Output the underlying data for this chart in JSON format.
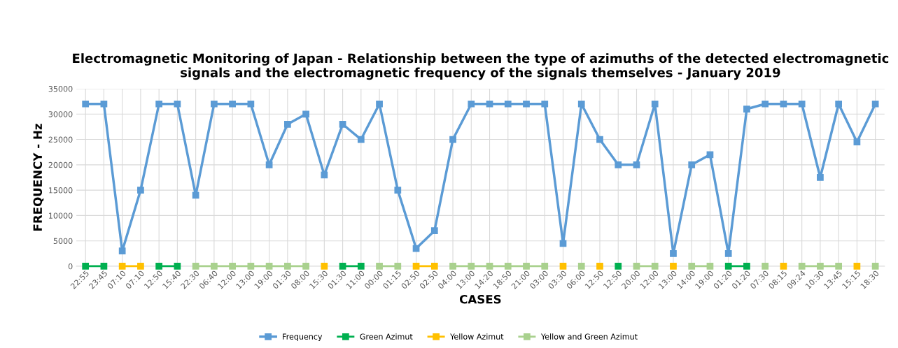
{
  "chart_data": {
    "type": "line",
    "title": "Electromagnetic Monitoring of Japan - Relationship between the type of azimuths of the detected electromagnetic signals and the electromagnetic frequency of the signals themselves - January 2019",
    "xlabel": "CASES",
    "ylabel": "FREQUENCY - Hz",
    "categories": [
      "22:55",
      "23:45",
      "07:10",
      "07:10",
      "12:50",
      "15:40",
      "22:30",
      "06:40",
      "12:00",
      "13:00",
      "19:00",
      "01:30",
      "08:00",
      "15:30",
      "01:30",
      "11:00",
      "00:00",
      "01:15",
      "02:50",
      "02:50",
      "04:00",
      "13:00",
      "14:20",
      "18:50",
      "21:00",
      "03:00",
      "03:30",
      "06:00",
      "12:50",
      "12:50",
      "20:00",
      "12:00",
      "13:00",
      "14:00",
      "19:00",
      "01:20",
      "01:20",
      "07:30",
      "08:15",
      "09:24",
      "10:30",
      "13:45",
      "15:15",
      "18:30"
    ],
    "series": [
      {
        "name": "Frequency",
        "color": "#5b9bd5",
        "values": [
          32000,
          32000,
          3000,
          15000,
          32000,
          32000,
          14000,
          32000,
          32000,
          32000,
          20000,
          28000,
          30000,
          18000,
          28000,
          25000,
          32000,
          15000,
          3500,
          7000,
          25000,
          32000,
          32000,
          32000,
          32000,
          32000,
          4500,
          32000,
          25000,
          20000,
          20000,
          32000,
          2500,
          20000,
          22000,
          2500,
          31000,
          32000,
          32000,
          32000,
          17500,
          32000,
          24500,
          32000
        ]
      },
      {
        "name": "Green Azimut",
        "color": "#00b050",
        "values": [
          0,
          0,
          null,
          null,
          0,
          0,
          null,
          null,
          null,
          null,
          null,
          null,
          null,
          null,
          0,
          0,
          null,
          null,
          null,
          null,
          null,
          null,
          null,
          null,
          null,
          null,
          null,
          null,
          null,
          0,
          null,
          null,
          null,
          null,
          null,
          0,
          0,
          null,
          null,
          null,
          null,
          null,
          null,
          null
        ]
      },
      {
        "name": "Yellow Azimut",
        "color": "#ffc000",
        "values": [
          null,
          null,
          0,
          0,
          null,
          null,
          null,
          null,
          null,
          null,
          null,
          null,
          null,
          0,
          null,
          null,
          null,
          null,
          0,
          0,
          null,
          null,
          null,
          null,
          null,
          null,
          0,
          null,
          0,
          null,
          null,
          null,
          0,
          null,
          null,
          null,
          null,
          null,
          0,
          null,
          null,
          null,
          0,
          null
        ]
      },
      {
        "name": "Yellow and Green Azimut",
        "color": "#a9d18e",
        "values": [
          null,
          null,
          null,
          null,
          null,
          null,
          0,
          0,
          0,
          0,
          0,
          0,
          0,
          null,
          null,
          null,
          0,
          0,
          null,
          null,
          0,
          0,
          0,
          0,
          0,
          0,
          null,
          0,
          null,
          null,
          0,
          0,
          null,
          0,
          0,
          null,
          null,
          0,
          null,
          0,
          0,
          0,
          null,
          0
        ]
      }
    ],
    "ylim": [
      0,
      35000
    ],
    "yticks": [
      0,
      5000,
      10000,
      15000,
      20000,
      25000,
      30000,
      35000
    ],
    "grid": true,
    "legend": "bottom",
    "marker": "square",
    "line_style": "solid"
  }
}
